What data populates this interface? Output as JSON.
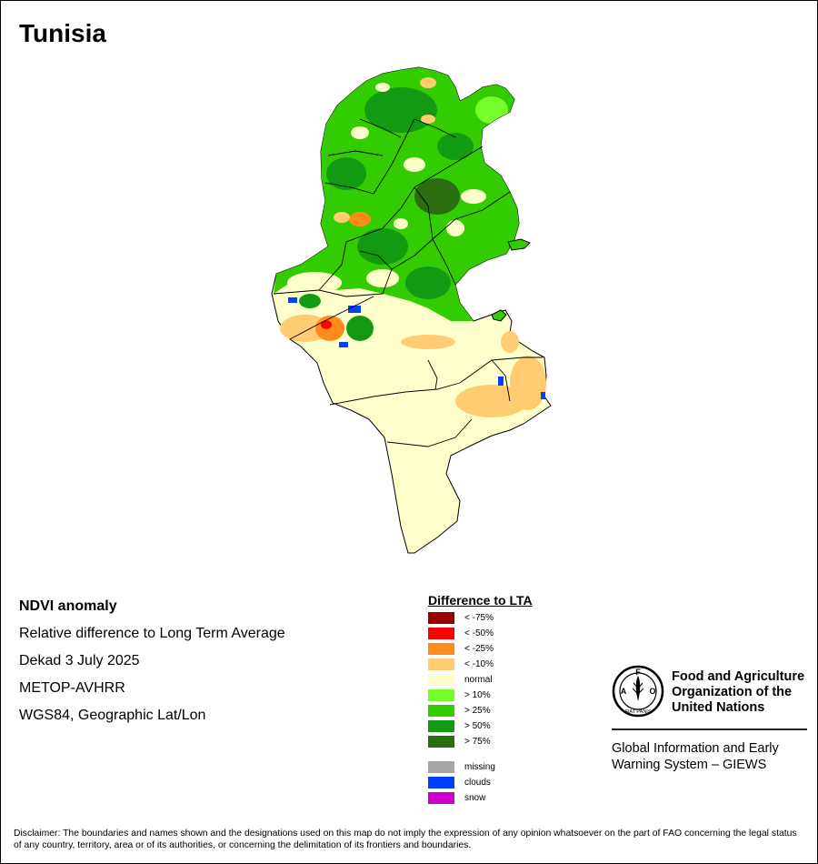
{
  "title": "Tunisia",
  "map_info": {
    "heading": "NDVI anomaly",
    "line1": "Relative difference to Long Term Average",
    "line2": "Dekad 3 July 2025",
    "line3": "METOP-AVHRR",
    "line4": "WGS84, Geographic Lat/Lon"
  },
  "legend": {
    "title": "Difference to LTA",
    "classes": [
      {
        "label": "< -75%",
        "color": "#990000"
      },
      {
        "label": "< -50%",
        "color": "#ff0000"
      },
      {
        "label": "< -25%",
        "color": "#ff8c1a"
      },
      {
        "label": "< -10%",
        "color": "#ffcc73"
      },
      {
        "label": "normal",
        "color": "#ffffcc"
      },
      {
        "label": "> 10%",
        "color": "#77ff2a"
      },
      {
        "label": "> 25%",
        "color": "#33cc00"
      },
      {
        "label": "> 50%",
        "color": "#129b12"
      },
      {
        "label": "> 75%",
        "color": "#2b6e0f"
      }
    ],
    "other": [
      {
        "label": "missing",
        "color": "#a6a6a6"
      },
      {
        "label": "clouds",
        "color": "#0040ff"
      },
      {
        "label": "snow",
        "color": "#cc00cc"
      }
    ]
  },
  "organization": {
    "logo_letters": {
      "top": "F",
      "left": "A",
      "right": "O"
    },
    "logo_motto": "FIAT PANIS",
    "name": "Food and Agriculture Organization of the United Nations",
    "program": "Global Information and Early Warning System – GIEWS"
  },
  "disclaimer": "Disclaimer: The boundaries and names shown and the designations used on this map do not imply the expression of any opinion whatsoever on the part of FAO concerning the legal status of any country, territory, area or of its authorities, or concerning the delimitation of its frontiers and boundaries."
}
